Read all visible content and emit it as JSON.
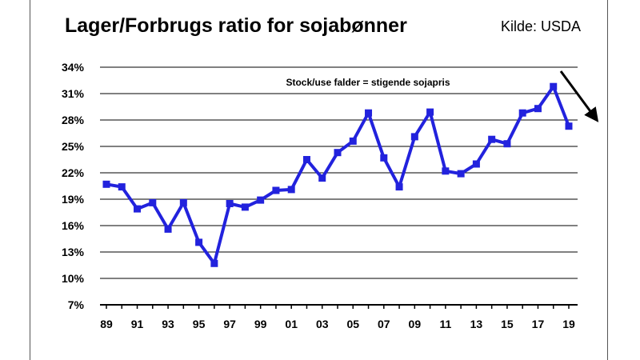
{
  "header": {
    "title": "Lager/Forbrugs ratio for sojabønner",
    "source": "Kilde: USDA"
  },
  "colors": {
    "series": "#2222dd",
    "grid": "#000000",
    "arrow": "#000000"
  },
  "chart_data": {
    "type": "line",
    "title": "Lager/Forbrugs ratio for sojabønner",
    "xlabel": "",
    "ylabel": "",
    "annotation": "Stock/use falder = stigende sojapris",
    "ylim": [
      7,
      34
    ],
    "yticks": [
      7,
      10,
      13,
      16,
      19,
      22,
      25,
      28,
      31,
      34
    ],
    "ytick_labels": [
      "7%",
      "10%",
      "13%",
      "16%",
      "19%",
      "22%",
      "25%",
      "28%",
      "31%",
      "34%"
    ],
    "grid": true,
    "xtick_labels": [
      "89",
      "91",
      "93",
      "95",
      "97",
      "99",
      "01",
      "03",
      "05",
      "07",
      "09",
      "11",
      "13",
      "15",
      "17",
      "19"
    ],
    "x": [
      "89",
      "90",
      "91",
      "92",
      "93",
      "94",
      "95",
      "96",
      "97",
      "98",
      "99",
      "00",
      "01",
      "02",
      "03",
      "04",
      "05",
      "06",
      "07",
      "08",
      "09",
      "10",
      "11",
      "12",
      "13",
      "14",
      "15",
      "16",
      "17",
      "18",
      "19"
    ],
    "series": [
      {
        "values": [
          20.7,
          20.4,
          17.9,
          18.6,
          15.6,
          18.6,
          14.1,
          11.7,
          18.5,
          18.1,
          18.9,
          20.0,
          20.1,
          23.5,
          21.4,
          24.3,
          25.6,
          28.8,
          23.7,
          20.4,
          26.1,
          28.9,
          22.2,
          21.9,
          23.0,
          25.8,
          25.3,
          28.8,
          29.3,
          31.8,
          27.3
        ]
      }
    ],
    "trend_arrow": "down-right"
  }
}
